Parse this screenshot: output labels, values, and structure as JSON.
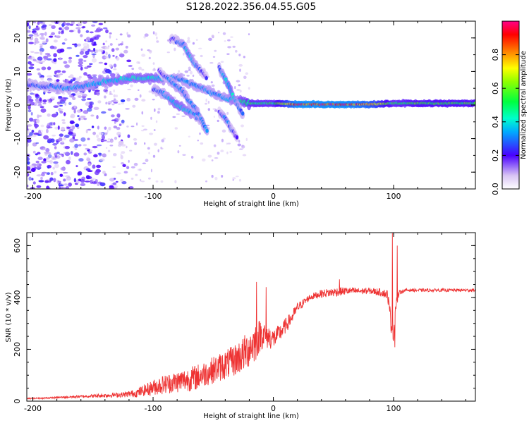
{
  "title": "S128.2022.356.04.55.G05",
  "chart_data": [
    {
      "type": "heatmap",
      "name": "spectrogram",
      "xlabel": "Height of straight line (km)",
      "ylabel": "Frequency (Hz)",
      "xlim": [
        -205,
        168
      ],
      "ylim": [
        -25,
        25
      ],
      "xticks": [
        -200,
        -100,
        0,
        100
      ],
      "yticks": [
        -20,
        -10,
        0,
        10,
        20
      ],
      "colorbar": {
        "label": "Normalized spectral amplitude",
        "range": [
          0,
          1
        ],
        "ticks": [
          "0.0",
          "0.2",
          "0.4",
          "0.6",
          "0.8"
        ],
        "tick_values": [
          0,
          0.2,
          0.4,
          0.6,
          0.8
        ]
      },
      "features": [
        {
          "feature": "main-tone",
          "x": [
            -205,
            -170,
            -140,
            -120,
            -100,
            -80,
            -60,
            -40,
            -20,
            0,
            20,
            40,
            60,
            80,
            100,
            120,
            140,
            168
          ],
          "y": [
            6,
            5,
            7,
            8,
            8,
            8,
            5,
            2,
            0.5,
            0.5,
            0.2,
            0.2,
            0.2,
            0.2,
            0.5,
            0.5,
            0.5,
            0.5
          ],
          "amplitude": [
            0.25,
            0.3,
            0.35,
            0.4,
            0.4,
            0.3,
            0.3,
            0.3,
            0.5,
            0.5,
            0.9,
            0.9,
            0.9,
            0.8,
            0.5,
            0.55,
            0.55,
            0.55
          ]
        },
        {
          "feature": "branch-1",
          "x": [
            -100,
            -90,
            -80,
            -70,
            -65,
            -60,
            -57
          ],
          "y": [
            5,
            3,
            0,
            -2,
            -3,
            -5,
            -7
          ],
          "amplitude": [
            0.25,
            0.3,
            0.4,
            0.35,
            0.3,
            0.25,
            0.2
          ]
        },
        {
          "feature": "branch-2",
          "x": [
            -95,
            -85,
            -75,
            -70,
            -65,
            -60,
            -55
          ],
          "y": [
            10,
            7,
            4,
            1,
            -1,
            -4,
            -8
          ],
          "amplitude": [
            0.2,
            0.3,
            0.3,
            0.3,
            0.3,
            0.3,
            0.3
          ]
        },
        {
          "feature": "branch-3",
          "x": [
            -85,
            -75,
            -70,
            -65,
            -60,
            -55
          ],
          "y": [
            20,
            18,
            15,
            12,
            10,
            8
          ],
          "amplitude": [
            0.2,
            0.3,
            0.35,
            0.3,
            0.25,
            0.2
          ]
        },
        {
          "feature": "branch-4",
          "x": [
            -45,
            -40,
            -35,
            -30,
            -25
          ],
          "y": [
            11,
            8,
            4,
            0,
            -3
          ],
          "amplitude": [
            0.25,
            0.35,
            0.4,
            0.3,
            0.25
          ]
        },
        {
          "feature": "branch-5",
          "x": [
            -45,
            -40,
            -35,
            -30
          ],
          "y": [
            -2,
            -4,
            -7,
            -10
          ],
          "amplitude": [
            0.2,
            0.3,
            0.25,
            0.2
          ]
        }
      ]
    },
    {
      "type": "line",
      "name": "snr",
      "xlabel": "Height of straight line (km)",
      "ylabel": "SNR (10 * v/v)",
      "xlim": [
        -205,
        168
      ],
      "ylim": [
        0,
        650
      ],
      "xticks": [
        -200,
        -100,
        0,
        100
      ],
      "yticks": [
        0,
        200,
        400,
        600
      ],
      "color": "#ee3333",
      "series": [
        {
          "x": [
            -205,
            -190,
            -175,
            -160,
            -140,
            -125,
            -115,
            -105,
            -95,
            -85,
            -75,
            -65,
            -55,
            -45,
            -35,
            -25,
            -15,
            -10,
            -5,
            0,
            5,
            10,
            15,
            20,
            25,
            30,
            40,
            50,
            60,
            70,
            80,
            90,
            95,
            98,
            100,
            102,
            105,
            110,
            120,
            140,
            168
          ],
          "y": [
            10,
            12,
            15,
            18,
            22,
            25,
            30,
            45,
            60,
            70,
            80,
            90,
            110,
            130,
            150,
            180,
            230,
            260,
            250,
            240,
            260,
            290,
            320,
            360,
            380,
            400,
            415,
            420,
            425,
            425,
            425,
            420,
            410,
            300,
            260,
            380,
            420,
            428,
            428,
            428,
            428
          ],
          "noise": [
            2,
            3,
            4,
            5,
            8,
            10,
            15,
            25,
            35,
            40,
            45,
            50,
            50,
            55,
            60,
            70,
            80,
            60,
            50,
            40,
            35,
            30,
            25,
            20,
            15,
            12,
            15,
            18,
            15,
            12,
            12,
            15,
            20,
            40,
            50,
            30,
            8,
            6,
            6,
            6,
            6
          ],
          "spikes": [
            {
              "x": -14,
              "y": 460
            },
            {
              "x": -6,
              "y": 440
            },
            {
              "x": 55,
              "y": 470
            },
            {
              "x": 99,
              "y": 648
            },
            {
              "x": 101,
              "y": 208
            },
            {
              "x": 103,
              "y": 600
            }
          ]
        }
      ]
    }
  ]
}
